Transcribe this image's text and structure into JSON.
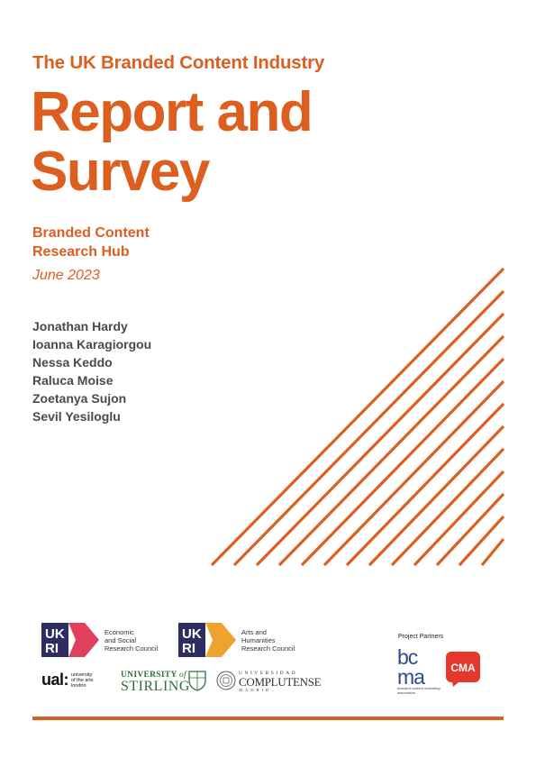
{
  "header": {
    "supertitle": "The UK Branded Content Industry",
    "title_line1": "Report and",
    "title_line2": "Survey",
    "hub_line1": "Branded Content",
    "hub_line2": "Research Hub",
    "date": "June 2023"
  },
  "authors": [
    "Jonathan Hardy",
    "Ioanna Karagiorgou",
    "Nessa Keddo",
    "Raluca Moise",
    "Zoetanya Sujon",
    "Sevil Yesiloglu"
  ],
  "logos": {
    "esrc": {
      "mark": "UKRI",
      "text": [
        "Economic",
        "and Social",
        "Research Council"
      ]
    },
    "ahrc": {
      "mark": "UKRI",
      "text": [
        "Arts and",
        "Humanities",
        "Research Council"
      ]
    },
    "ual": {
      "mark": "ual:",
      "text": [
        "university",
        "of the arts",
        "london"
      ]
    },
    "stirling": {
      "top": "UNIVERSITY",
      "of": "of",
      "bottom": "STIRLING"
    },
    "ucm": {
      "top": "UNIVERSIDAD",
      "main": "COMPLUTENSE",
      "bottom": "MADRID"
    },
    "partners_label": "Project Partners",
    "bcma": {
      "line1": "bc",
      "line2": "ma",
      "caption": "branded content marketing association"
    },
    "cma": "CMA"
  },
  "colors": {
    "accent": "#dc5f20",
    "ukri_navy": "#2e2d5f",
    "esrc_accent": "#e0405e",
    "ahrc_accent": "#f0a22e",
    "stirling_green": "#2e6f3a",
    "cma_red": "#e5372b"
  },
  "icons": [
    "ukri-logo",
    "ual-logo",
    "stirling-crest",
    "complutense-seal",
    "bcma-logo",
    "cma-logo"
  ]
}
